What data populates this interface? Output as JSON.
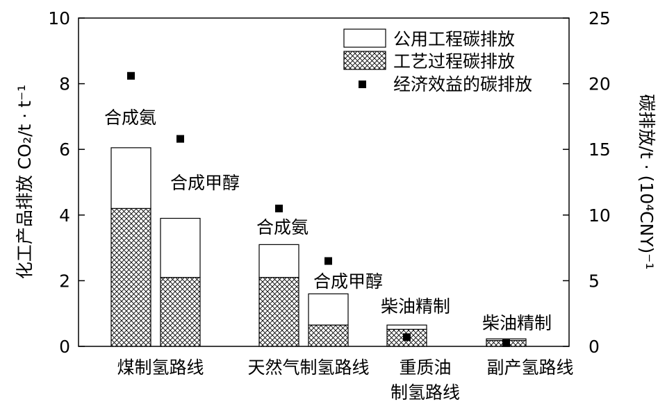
{
  "chart_data": {
    "type": "bar",
    "subtype": "stacked bar with secondary-axis scatter",
    "y_left": {
      "label": "化工产品排放 CO₂/t · t⁻¹",
      "ylim": [
        0,
        10
      ],
      "ticks": [
        0,
        2,
        4,
        6,
        8,
        10
      ]
    },
    "y_right": {
      "label": "碳排放/t · (10⁴CNY)⁻¹",
      "ylim": [
        0,
        25
      ],
      "ticks": [
        0,
        5,
        10,
        15,
        20,
        25
      ]
    },
    "groups": [
      {
        "label": "煤制氢路线"
      },
      {
        "label": "天然气制氢路线"
      },
      {
        "label": "重质油\n制氢路线"
      },
      {
        "label": "副产氢路线"
      }
    ],
    "bars": [
      {
        "group": 0,
        "label": "合成氨",
        "process": 4.2,
        "utility": 1.85,
        "economic": 20.6
      },
      {
        "group": 0,
        "label": "合成甲醇",
        "process": 2.1,
        "utility": 1.8,
        "economic": 15.8
      },
      {
        "group": 1,
        "label": "合成氨",
        "process": 2.1,
        "utility": 1.0,
        "economic": 10.5
      },
      {
        "group": 1,
        "label": "合成甲醇",
        "process": 0.65,
        "utility": 0.95,
        "economic": 6.5
      },
      {
        "group": 2,
        "label": "柴油精制",
        "process": 0.52,
        "utility": 0.13,
        "economic": 0.7
      },
      {
        "group": 3,
        "label": "柴油精制",
        "process": 0.18,
        "utility": 0.05,
        "economic": 0.25
      }
    ],
    "series": [
      {
        "name": "公用工程碳排放",
        "key": "utility",
        "axis": "left",
        "style": "white"
      },
      {
        "name": "工艺过程碳排放",
        "key": "process",
        "axis": "left",
        "style": "crosshatch"
      },
      {
        "name": "经济效益的碳排放",
        "key": "economic",
        "axis": "right",
        "style": "square-marker"
      }
    ],
    "legend_position": "top-right",
    "grid": false
  }
}
